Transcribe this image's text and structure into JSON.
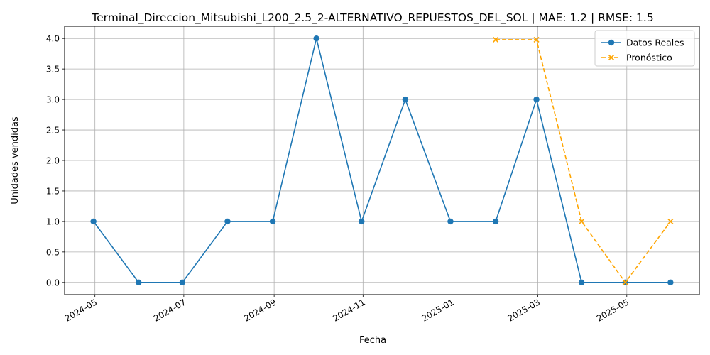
{
  "chart_data": {
    "type": "line",
    "title": "Terminal_Direccion_Mitsubishi_L200_2.5_2-ALTERNATIVO_REPUESTOS_DEL_SOL | MAE: 1.2 | RMSE: 1.5",
    "xlabel": "Fecha",
    "ylabel": "Unidades vendidas",
    "ylim": [
      -0.2,
      4.2
    ],
    "grid": true,
    "legend": "top-right",
    "x_ticks": [
      "2024-05",
      "2024-07",
      "2024-09",
      "2024-11",
      "2025-01",
      "2025-03",
      "2025-05"
    ],
    "y_ticks": [
      "0.0",
      "0.5",
      "1.0",
      "1.5",
      "2.0",
      "2.5",
      "3.0",
      "3.5",
      "4.0"
    ],
    "series": [
      {
        "name": "Datos Reales",
        "color": "#1f77b4",
        "marker": "circle",
        "style": "solid",
        "x": [
          "2024-04-30",
          "2024-05-31",
          "2024-06-30",
          "2024-07-31",
          "2024-08-31",
          "2024-09-30",
          "2024-10-31",
          "2024-11-30",
          "2024-12-31",
          "2025-01-31",
          "2025-02-28",
          "2025-03-31",
          "2025-04-30",
          "2025-05-31"
        ],
        "values": [
          1,
          0,
          0,
          1,
          1,
          4,
          1,
          3,
          1,
          1,
          3,
          0,
          0,
          0
        ]
      },
      {
        "name": "Pronóstico",
        "color": "#ffa500",
        "marker": "x",
        "style": "dashed",
        "x": [
          "2025-01-31",
          "2025-02-28",
          "2025-03-31",
          "2025-04-30",
          "2025-05-31"
        ],
        "values": [
          3.98,
          3.98,
          1.0,
          0.0,
          1.0
        ]
      }
    ]
  }
}
